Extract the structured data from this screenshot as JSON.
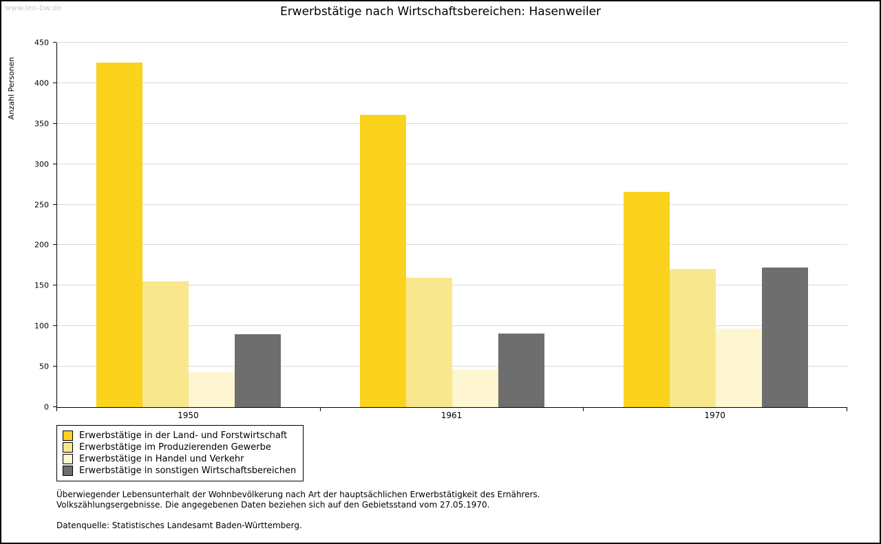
{
  "watermark": "www.leo-bw.de",
  "chart_data": {
    "type": "bar",
    "title": "Erwerbstätige nach Wirtschaftsbereichen: Hasenweiler",
    "xlabel": "",
    "ylabel": "Anzahl Personen",
    "ylim": [
      0,
      450
    ],
    "ytick_step": 50,
    "grid": true,
    "legend_position": "bottom-left",
    "categories": [
      "1950",
      "1961",
      "1970"
    ],
    "series": [
      {
        "name": "Erwerbstätige in der Land- und Forstwirtschaft",
        "color": "#fbd21c",
        "values": [
          425,
          361,
          266
        ]
      },
      {
        "name": "Erwerbstätige im Produzierenden Gewerbe",
        "color": "#f9e78e",
        "values": [
          155,
          160,
          171
        ]
      },
      {
        "name": "Erwerbstätige in Handel und Verkehr",
        "color": "#fdf6d0",
        "values": [
          43,
          47,
          97
        ]
      },
      {
        "name": "Erwerbstätige in sonstigen Wirtschaftsbereichen",
        "color": "#6e6e6e",
        "values": [
          90,
          91,
          172
        ]
      }
    ]
  },
  "footnotes": {
    "line1": "Überwiegender Lebensunterhalt der Wohnbevölkerung nach Art der hauptsächlichen Erwerbstätigkeit des Ernährers.",
    "line2": "Volkszählungsergebnisse. Die angegebenen Daten beziehen sich auf den Gebietsstand vom 27.05.1970.",
    "source": "Datenquelle: Statistisches Landesamt Baden-Württemberg."
  }
}
